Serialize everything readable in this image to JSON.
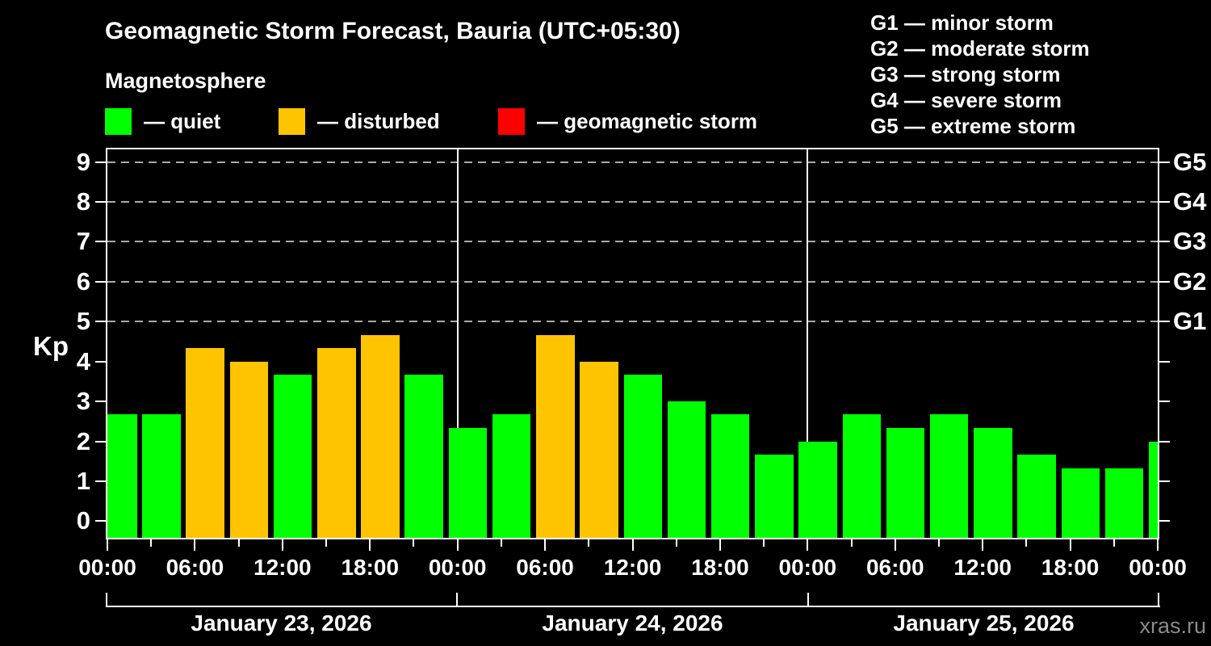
{
  "header": {
    "title": "Geomagnetic Storm Forecast, Bauria (UTC+05:30)",
    "subtitle": "Magnetosphere"
  },
  "legend": {
    "items": [
      {
        "key": "quiet",
        "label": "— quiet",
        "color": "#00ff00"
      },
      {
        "key": "disturbed",
        "label": "— disturbed",
        "color": "#ffc400"
      },
      {
        "key": "storm",
        "label": "— geomagnetic storm",
        "color": "#ff0000"
      }
    ]
  },
  "g_legend": [
    "G1 — minor storm",
    "G2 — moderate storm",
    "G3 — strong storm",
    "G4 — severe storm",
    "G5 — extreme storm"
  ],
  "watermark": "xras.ru",
  "chart_data": {
    "type": "bar",
    "title": "Geomagnetic Storm Forecast, Bauria (UTC+05:30)",
    "ylabel": "Kp",
    "ylim": [
      0,
      9
    ],
    "y_ticks": [
      0,
      1,
      2,
      3,
      4,
      5,
      6,
      7,
      8,
      9
    ],
    "grid": "dashed horizontal lines at Kp 5-9",
    "grid_levels": [
      5,
      6,
      7,
      8,
      9
    ],
    "right_axis": [
      {
        "kp": 5,
        "label": "G1"
      },
      {
        "kp": 6,
        "label": "G2"
      },
      {
        "kp": 7,
        "label": "G3"
      },
      {
        "kp": 8,
        "label": "G4"
      },
      {
        "kp": 9,
        "label": "G5"
      }
    ],
    "bar_interval_hours": 3,
    "time_tick_labels": [
      "00:00",
      "06:00",
      "12:00",
      "18:00",
      "00:00",
      "06:00",
      "12:00",
      "18:00",
      "00:00",
      "06:00",
      "12:00",
      "18:00",
      "00:00"
    ],
    "days": [
      {
        "date": "January 23, 2026",
        "values": [
          2.67,
          2.67,
          4.33,
          4.0,
          3.67,
          4.33,
          4.67,
          3.67
        ]
      },
      {
        "date": "January 24, 2026",
        "values": [
          2.33,
          2.67,
          4.67,
          4.0,
          3.67,
          3.0,
          2.67,
          1.67
        ]
      },
      {
        "date": "January 25, 2026",
        "values": [
          2.0,
          2.67,
          2.33,
          2.67,
          2.33,
          1.67,
          1.33,
          1.33
        ]
      }
    ],
    "partial_next_value": 2.0,
    "color_thresholds": {
      "disturbed_min_kp": 4,
      "storm_min_kp": 5
    },
    "colors": {
      "quiet": "#00ff00",
      "disturbed": "#ffc400",
      "storm": "#ff0000"
    },
    "legend_position": "top-left"
  }
}
